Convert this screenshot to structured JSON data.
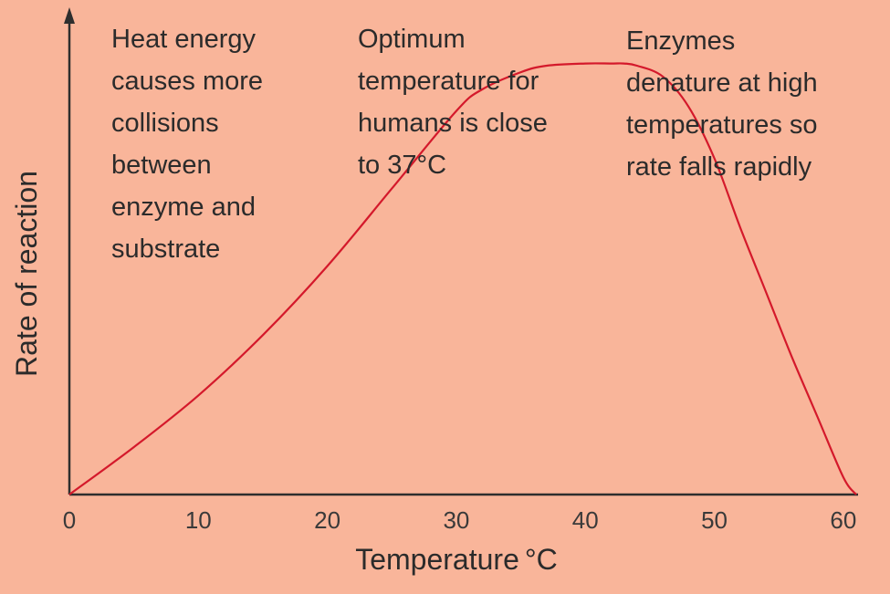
{
  "chart_data": {
    "type": "line",
    "xlabel": "Temperature",
    "xlabel_unit": "°C",
    "ylabel": "Rate of reaction",
    "xlim": [
      0,
      61
    ],
    "x_ticks": [
      0,
      10,
      20,
      30,
      40,
      50,
      60
    ],
    "ylim": [
      0,
      1.05
    ],
    "y_ticks_shown": false,
    "grid": false,
    "series": [
      {
        "x": [
          0,
          5,
          10,
          15,
          20,
          25,
          30,
          32,
          35,
          37,
          40,
          42,
          43,
          44,
          46,
          48,
          50,
          52,
          54,
          56,
          58,
          60,
          61
        ],
        "y": [
          0,
          0.11,
          0.23,
          0.37,
          0.53,
          0.71,
          0.89,
          0.94,
          0.98,
          0.995,
          1.0,
          1.0,
          1.0,
          0.995,
          0.97,
          0.9,
          0.78,
          0.62,
          0.47,
          0.32,
          0.18,
          0.04,
          0.0
        ]
      }
    ],
    "colors": {
      "line": "#d4192b",
      "axis": "#2e2e2e",
      "background": "#f9b59a"
    },
    "annotations": [
      {
        "lines": [
          "Heat energy",
          "causes more",
          "collisions",
          "between",
          "enzyme and",
          "substrate"
        ]
      },
      {
        "lines": [
          "Optimum",
          "temperature for",
          "humans is close",
          "to 37°C"
        ]
      },
      {
        "lines": [
          "Enzymes",
          "denature at high",
          "temperatures so",
          "rate falls rapidly"
        ]
      }
    ]
  }
}
